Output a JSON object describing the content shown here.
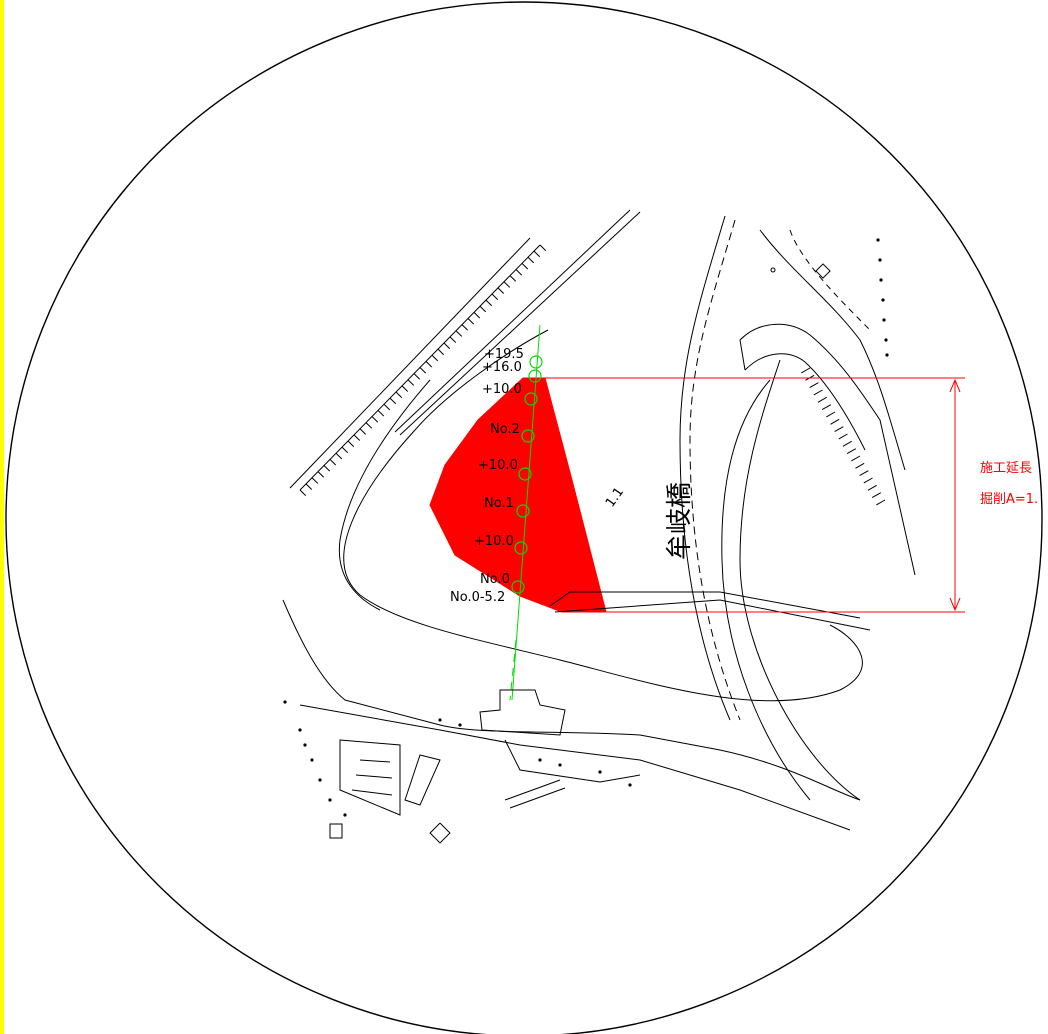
{
  "colors": {
    "frame_bar": "#ffff00",
    "excavation_fill": "#ff0000",
    "centerline": "#00dd00",
    "dimension": "#ff0000",
    "linework": "#000000"
  },
  "stations": {
    "s1": "+19.5",
    "s2": "+16.0",
    "s3": "+10.0",
    "s4": "No.2",
    "s5": "+10.0",
    "s6": "No.1",
    "s7": "+10.0",
    "s8": "No.0",
    "s9": "No.0-5.2"
  },
  "bridge_name": "牟岐橋",
  "small_label": "1.1",
  "annotations": {
    "construction_length": "施工延長",
    "excavation_area": "掘削A=1."
  }
}
